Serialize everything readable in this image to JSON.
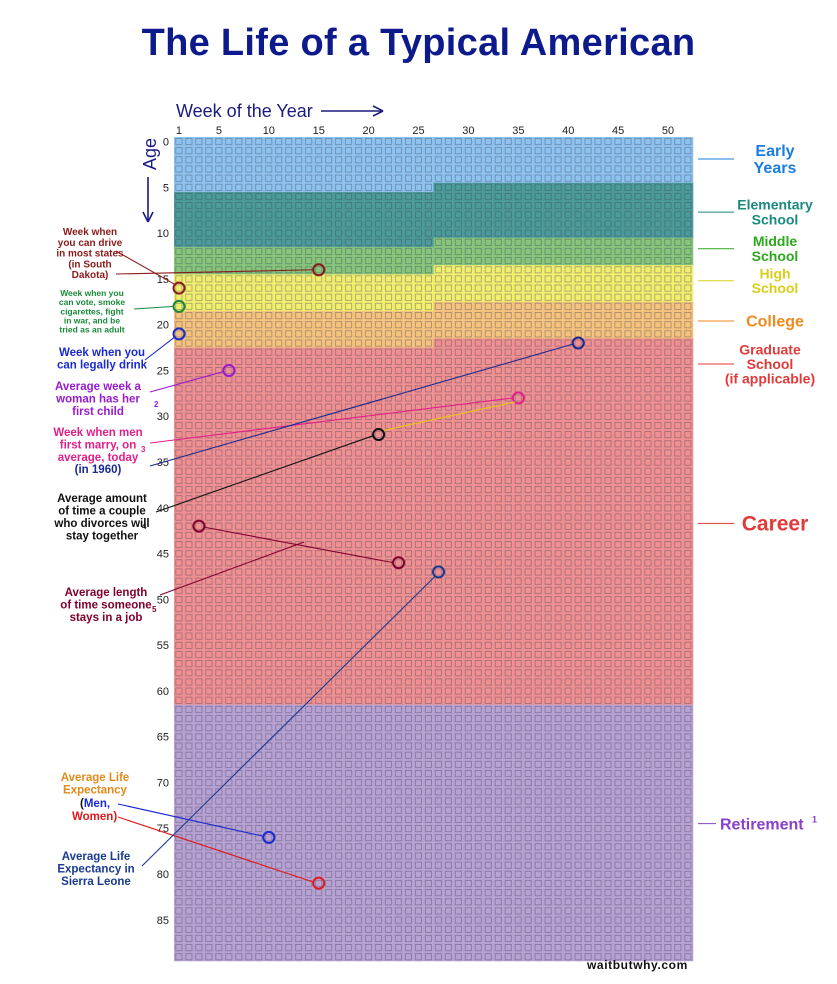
{
  "title": "The Life of a Typical American",
  "credit": "waitbutwhy.com",
  "chart_data": {
    "type": "heatmap",
    "title": "The Life of a Typical American",
    "xlabel": "Week of the Year",
    "ylabel": "Age",
    "x_ticks": [
      1,
      5,
      10,
      15,
      20,
      25,
      30,
      35,
      40,
      45,
      50
    ],
    "y_ticks": [
      0,
      5,
      10,
      15,
      20,
      25,
      30,
      35,
      40,
      45,
      50,
      55,
      60,
      65,
      70,
      75,
      80,
      85
    ],
    "weeks": 52,
    "years": 90,
    "phases": [
      {
        "name": "Early Years",
        "start_age": 0,
        "start_week": 1,
        "end_age": 5,
        "end_week": 26,
        "color": "#8ec3ef",
        "label_color": "#1a7ee0"
      },
      {
        "name": "Elementary School",
        "start_age": 5,
        "start_week": 27,
        "end_age": 11,
        "end_week": 26,
        "color": "#4a9b9a",
        "label_color": "#1b8a7e"
      },
      {
        "name": "Middle School",
        "start_age": 11,
        "start_week": 27,
        "end_age": 14,
        "end_week": 26,
        "color": "#86c57a",
        "label_color": "#2ca81c"
      },
      {
        "name": "High School",
        "start_age": 14,
        "start_week": 27,
        "end_age": 18,
        "end_week": 26,
        "color": "#f2ef6e",
        "label_color": "#d9cf1a"
      },
      {
        "name": "College",
        "start_age": 18,
        "start_week": 27,
        "end_age": 22,
        "end_week": 26,
        "color": "#f6c37c",
        "label_color": "#f08a1c"
      },
      {
        "name": "Graduate School (if applicable)",
        "start_age": 22,
        "start_week": 27,
        "end_age": 24,
        "end_week": 52,
        "color": "#f09090",
        "label_color": "#e23a3a"
      },
      {
        "name": "Career",
        "start_age": 25,
        "start_week": 1,
        "end_age": 61,
        "end_week": 52,
        "color": "#f09090",
        "label_color": "#e23a3a"
      },
      {
        "name": "Retirement",
        "start_age": 62,
        "start_week": 1,
        "end_age": 89,
        "end_week": 52,
        "color": "#b7a2d2",
        "label_color": "#8a3fc8"
      }
    ],
    "phase_labels": {
      "early": "Early\nYears",
      "elementary": "Elementary\nSchool",
      "middle": "Middle\nSchool",
      "high": "High\nSchool",
      "college": "College",
      "grad": "Graduate\nSchool\n(if applicable)",
      "career": "Career",
      "retirement": "Retirement",
      "retirement_note": "1"
    },
    "annotations": [
      {
        "id": "drive",
        "text": "Week when\nyou can drive\nin most states\n(in South\nDakota)",
        "age": 14,
        "week": 15,
        "color": "#8c1a1a",
        "note": ""
      },
      {
        "id": "drive2",
        "text": "",
        "age": 16,
        "week": 1,
        "color": "#8c1a1a",
        "note": ""
      },
      {
        "id": "vote",
        "text": "Week when you\ncan vote, smoke\ncigarettes, fight\nin war, and be\ntried as an adult",
        "age": 18,
        "week": 1,
        "color": "#1a8a3a",
        "note": ""
      },
      {
        "id": "drink",
        "text": "Week when you\ncan legally drink",
        "age": 21,
        "week": 1,
        "color": "#1a2ad0",
        "note": ""
      },
      {
        "id": "child",
        "text": "Average week a\nwoman has her\nfirst child",
        "age": 25,
        "week": 6,
        "color": "#9a1ad0",
        "note": "2"
      },
      {
        "id": "marry_today",
        "text": "Week when men\nfirst marry, on\naverage, today",
        "age": 28,
        "week": 35,
        "color": "#e0208a",
        "note": "3"
      },
      {
        "id": "marry_1960",
        "text": "(in 1960)",
        "age": 22,
        "week": 41,
        "color": "#1a2a90",
        "note": ""
      },
      {
        "id": "divorce",
        "text": "Average amount\nof time a couple\nwho divorces will\nstay together",
        "age": 32,
        "week": 21,
        "color": "#111111",
        "note": "4"
      },
      {
        "id": "job",
        "text": "Average length\nof time someone\nstays in a job",
        "age": 42,
        "week": 3,
        "color": "#800030",
        "note": "5"
      },
      {
        "id": "job_end",
        "text": "",
        "age": 46,
        "week": 23,
        "color": "#800030",
        "note": ""
      },
      {
        "id": "life_men",
        "text": "Men,",
        "age": 76,
        "week": 10,
        "color": "#1a2ad0",
        "note": ""
      },
      {
        "id": "life_women",
        "text": "Women)",
        "age": 81,
        "week": 15,
        "color": "#e01a1a",
        "note": ""
      },
      {
        "id": "sierra",
        "text": "Average Life\nExpectancy in\nSierra Leone",
        "age": 47,
        "week": 27,
        "color": "#1a3a90",
        "note": ""
      }
    ],
    "life_expectancy_header": "Average Life\nExpectancy",
    "life_open_paren": "("
  }
}
